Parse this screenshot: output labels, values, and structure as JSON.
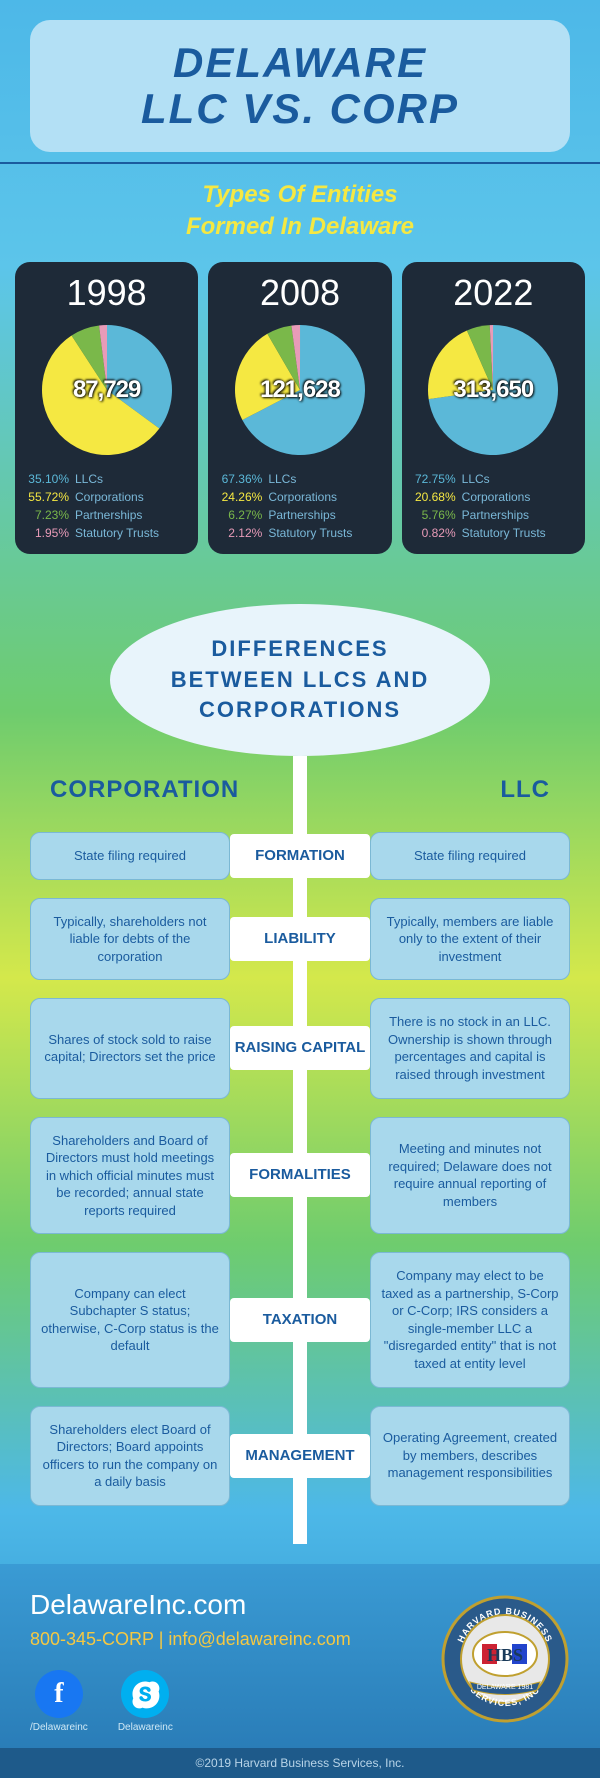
{
  "header": {
    "line1": "DELAWARE",
    "line2": "LLC VS. CORP"
  },
  "subtitle": {
    "line1": "Types Of Entities",
    "line2": "Formed In Delaware"
  },
  "palette": {
    "llc": "#5bb8d8",
    "corp": "#f5e842",
    "partnership": "#7ab84a",
    "trust": "#e89bb8"
  },
  "legend_labels": {
    "llc": "LLCs",
    "corp": "Corporations",
    "partnership": "Partnerships",
    "trust": "Statutory Trusts"
  },
  "charts": [
    {
      "year": "1998",
      "total": "87,729",
      "slices": [
        {
          "key": "llc",
          "pct": 35.1,
          "pct_label": "35.10%",
          "color": "#5bb8d8"
        },
        {
          "key": "corp",
          "pct": 55.72,
          "pct_label": "55.72%",
          "color": "#f5e842"
        },
        {
          "key": "partnership",
          "pct": 7.23,
          "pct_label": "7.23%",
          "color": "#7ab84a"
        },
        {
          "key": "trust",
          "pct": 1.95,
          "pct_label": "1.95%",
          "color": "#e89bb8"
        }
      ]
    },
    {
      "year": "2008",
      "total": "121,628",
      "slices": [
        {
          "key": "llc",
          "pct": 67.36,
          "pct_label": "67.36%",
          "color": "#5bb8d8"
        },
        {
          "key": "corp",
          "pct": 24.26,
          "pct_label": "24.26%",
          "color": "#f5e842"
        },
        {
          "key": "partnership",
          "pct": 6.27,
          "pct_label": "6.27%",
          "color": "#7ab84a"
        },
        {
          "key": "trust",
          "pct": 2.12,
          "pct_label": "2.12%",
          "color": "#e89bb8"
        }
      ]
    },
    {
      "year": "2022",
      "total": "313,650",
      "slices": [
        {
          "key": "llc",
          "pct": 72.75,
          "pct_label": "72.75%",
          "color": "#5bb8d8"
        },
        {
          "key": "corp",
          "pct": 20.68,
          "pct_label": "20.68%",
          "color": "#f5e842"
        },
        {
          "key": "partnership",
          "pct": 5.76,
          "pct_label": "5.76%",
          "color": "#7ab84a"
        },
        {
          "key": "trust",
          "pct": 0.82,
          "pct_label": "0.82%",
          "color": "#e89bb8"
        }
      ]
    }
  ],
  "differences_title": "DIFFERENCES BETWEEN LLCS AND CORPORATIONS",
  "column_headers": {
    "left": "CORPORATION",
    "right": "LLC"
  },
  "rows": [
    {
      "label": "FORMATION",
      "corp": "State filing required",
      "llc": "State filing required"
    },
    {
      "label": "LIABILITY",
      "corp": "Typically, shareholders not liable for debts of the corporation",
      "llc": "Typically, members are liable only to the extent of their investment"
    },
    {
      "label": "RAISING CAPITAL",
      "corp": "Shares of stock sold to raise capital; Directors set the price",
      "llc": "There is no stock in an LLC. Ownership is shown through percentages and capital is raised through investment"
    },
    {
      "label": "FORMALITIES",
      "corp": "Shareholders and Board of Directors must hold meetings in which official minutes must be recorded; annual state reports required",
      "llc": "Meeting and minutes not required; Delaware does not require annual reporting of members"
    },
    {
      "label": "TAXATION",
      "corp": "Company can elect Subchapter S status; otherwise, C-Corp status is the default",
      "llc": "Company may elect to be taxed as a partnership, S-Corp or C-Corp; IRS considers a single-member LLC a \"disregarded entity\" that is not taxed at entity level"
    },
    {
      "label": "MANAGEMENT",
      "corp": "Shareholders elect Board of Directors; Board appoints officers to run the company on a daily basis",
      "llc": "Operating Agreement, created by members, describes management responsibilities"
    }
  ],
  "footer": {
    "site": "DelawareInc.com",
    "phone": "800-345-CORP",
    "email": "info@delawareinc.com",
    "separator": " | ",
    "social": [
      {
        "platform": "facebook",
        "handle": "/Delawareinc"
      },
      {
        "platform": "skype",
        "handle": "Delawareinc"
      }
    ],
    "seal": {
      "outer_text_top": "HARVARD BUSINESS",
      "outer_text_bottom": "SERVICES, INC",
      "center": "HBS",
      "banner": "DELAWARE 1981"
    }
  },
  "copyright": "©2019 Harvard Business Services, Inc."
}
